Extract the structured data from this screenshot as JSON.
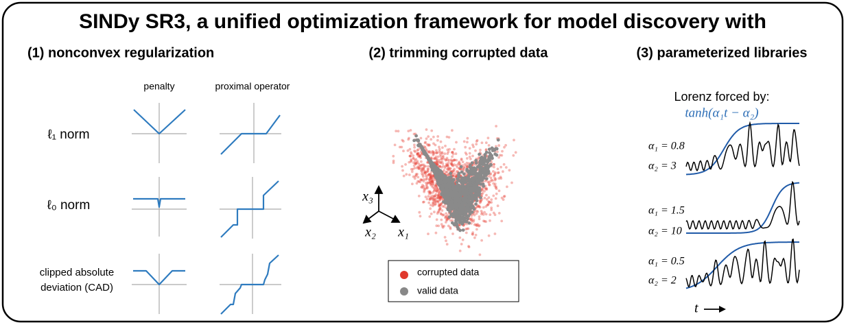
{
  "title": "SINDy SR3, a unified optimization framework for model discovery with",
  "panel1": {
    "heading": "(1) nonconvex regularization",
    "columns": [
      "penalty",
      "proximal operator"
    ],
    "rows": [
      {
        "lines": [
          "ℓ₁ norm"
        ]
      },
      {
        "lines": [
          "ℓ₀ norm"
        ]
      },
      {
        "lines": [
          "clipped absolute",
          "deviation (CAD)"
        ]
      }
    ]
  },
  "panel2": {
    "heading": "(2) trimming corrupted data",
    "axes": [
      "x₃",
      "x₂",
      "x₁"
    ],
    "legend": [
      "corrupted data",
      "valid data"
    ]
  },
  "panel3": {
    "heading": "(3) parameterized libraries",
    "caption": "Lorenz forced by:",
    "formula": "tanh(α₁t − α₂)",
    "cases": [
      {
        "a1": "α₁ = 0.8",
        "a2": "α₂ = 3"
      },
      {
        "a1": "α₁ = 1.5",
        "a2": "α₂ = 10"
      },
      {
        "a1": "α₁ = 0.5",
        "a2": "α₂ = 2"
      }
    ],
    "time_label": "t"
  }
}
